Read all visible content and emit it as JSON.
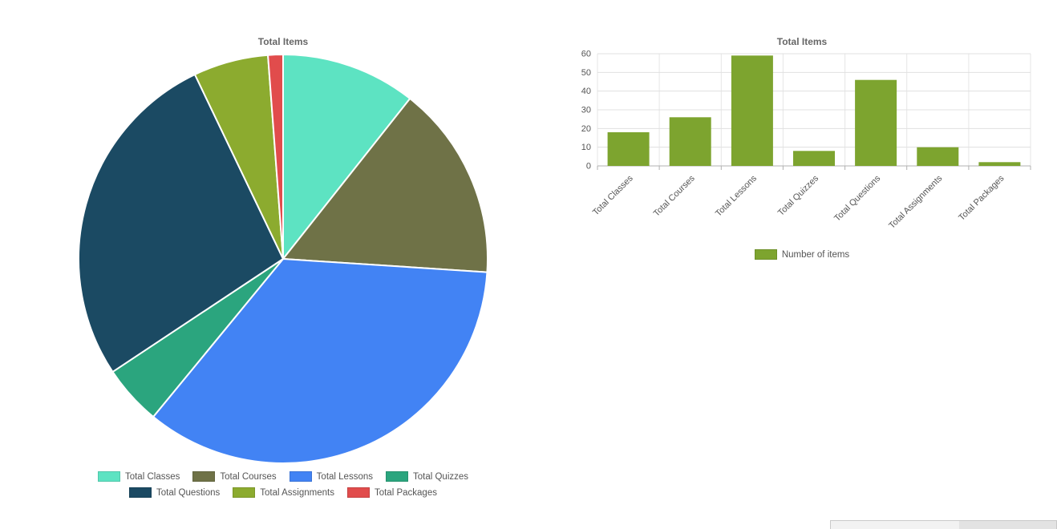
{
  "chart_data": [
    {
      "type": "pie",
      "title": "Total Items",
      "categories": [
        "Total Classes",
        "Total Courses",
        "Total Lessons",
        "Total Quizzes",
        "Total Questions",
        "Total Assignments",
        "Total Packages"
      ],
      "values": [
        18,
        26,
        59,
        8,
        46,
        10,
        2
      ],
      "colors": [
        "#5de3c2",
        "#6f7247",
        "#4283f4",
        "#2ba57e",
        "#1b4a63",
        "#8cab2f",
        "#e14c4c"
      ],
      "start_angle_deg": -90,
      "direction": "clockwise",
      "legend_position": "bottom",
      "legend_row_split": 4
    },
    {
      "type": "bar",
      "title": "Total Items",
      "categories": [
        "Total Classes",
        "Total Courses",
        "Total Lessons",
        "Total Quizzes",
        "Total Questions",
        "Total Assignments",
        "Total Packages"
      ],
      "series": [
        {
          "name": "Number of items",
          "values": [
            18,
            26,
            59,
            8,
            46,
            10,
            2
          ],
          "color": "#7da42f"
        }
      ],
      "xlabel": "",
      "ylabel": "",
      "ylim": [
        0,
        60
      ],
      "yticks": [
        0,
        10,
        20,
        30,
        40,
        50,
        60
      ],
      "grid": true,
      "legend_position": "bottom"
    }
  ]
}
